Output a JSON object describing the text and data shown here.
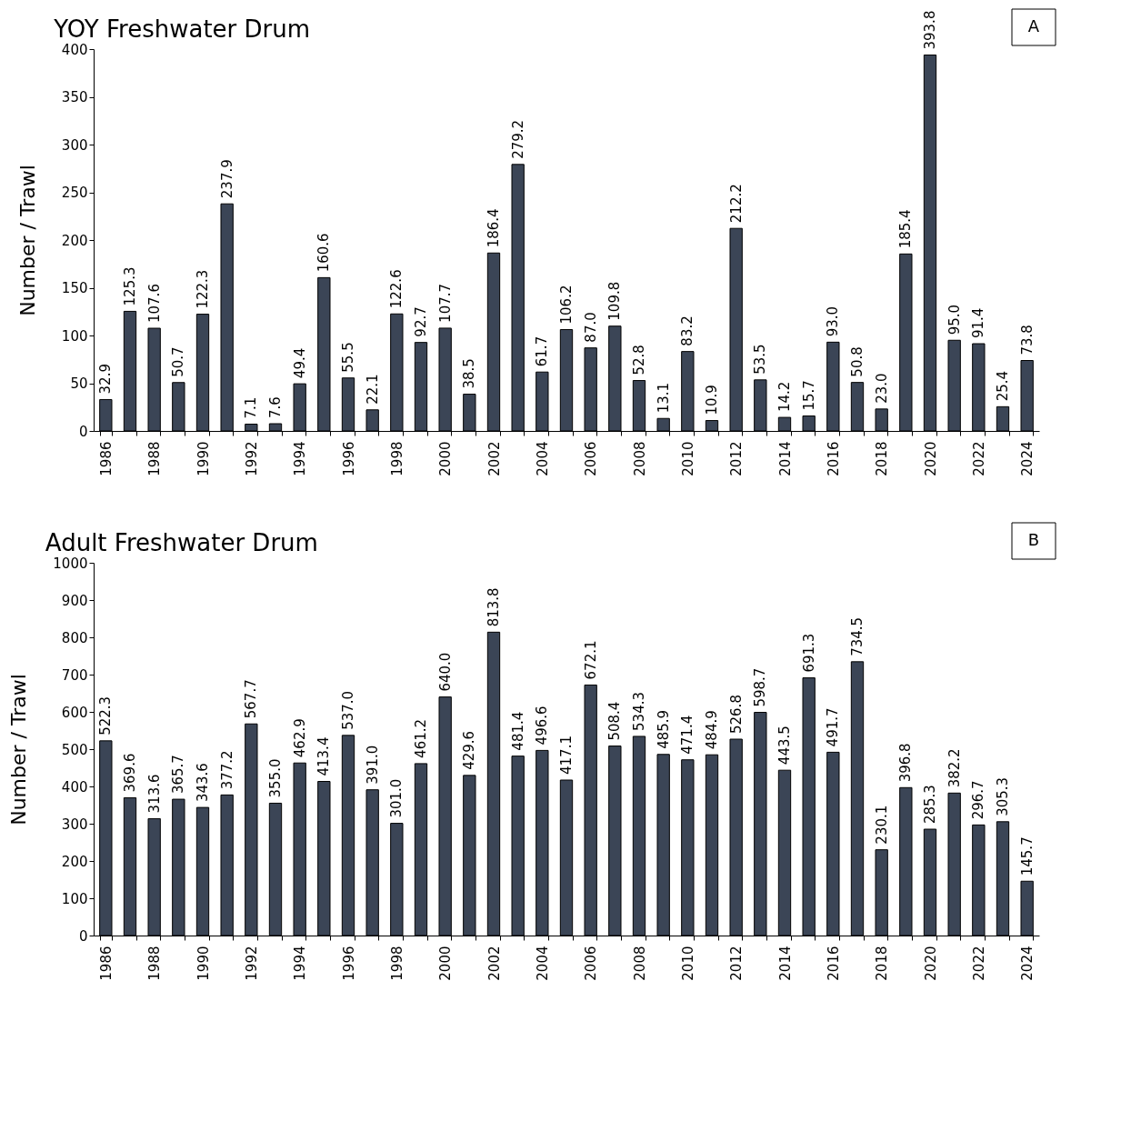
{
  "chart_data": [
    {
      "type": "bar",
      "title": "YOY Freshwater Drum",
      "ylabel": "Number / Trawl",
      "annotations": [
        "A"
      ],
      "categories": [
        "1986",
        null,
        "1988",
        null,
        "1990",
        null,
        "1992",
        null,
        "1994",
        null,
        "1996",
        null,
        "1998",
        null,
        "2000",
        null,
        "2002",
        null,
        "2004",
        null,
        "2006",
        null,
        "2008",
        null,
        "2010",
        null,
        "2012",
        null,
        "2014",
        null,
        "2016",
        null,
        "2018",
        null,
        "2020",
        null,
        "2022",
        null,
        "2024"
      ],
      "values": [
        32.9,
        125.3,
        107.6,
        50.7,
        122.3,
        237.9,
        7.1,
        7.6,
        49.4,
        160.6,
        55.5,
        22.1,
        122.6,
        92.7,
        107.7,
        38.5,
        186.4,
        279.2,
        61.7,
        106.2,
        87.0,
        109.8,
        52.8,
        13.1,
        83.2,
        10.9,
        212.2,
        53.5,
        14.2,
        15.7,
        93.0,
        50.8,
        23.0,
        185.4,
        393.8,
        95.0,
        91.4,
        25.4,
        73.8
      ],
      "value_labels": [
        "32.9",
        "125.3",
        "107.6",
        "50.7",
        "122.3",
        "237.9",
        "7.1",
        "7.6",
        "49.4",
        "160.6",
        "55.5",
        "22.1",
        "122.6",
        "92.7",
        "107.7",
        "38.5",
        "186.4",
        "279.2",
        "61.7",
        "106.2",
        "87.0",
        "109.8",
        "52.8",
        "13.1",
        "83.2",
        "10.9",
        "212.2",
        "53.5",
        "14.2",
        "15.7",
        "93.0",
        "50.8",
        "23.0",
        "185.4",
        "393.8",
        "95.0",
        "91.4",
        "25.4",
        "73.8"
      ],
      "color": "#3b4556",
      "ylim": [
        0,
        400
      ],
      "yticks": [
        0,
        50,
        100,
        150,
        200,
        250,
        300,
        350,
        400
      ],
      "grid": false
    },
    {
      "type": "bar",
      "title": "Adult Freshwater Drum",
      "ylabel": "Number / Trawl",
      "annotations": [
        "B"
      ],
      "categories": [
        "1986",
        null,
        "1988",
        null,
        "1990",
        null,
        "1992",
        null,
        "1994",
        null,
        "1996",
        null,
        "1998",
        null,
        "2000",
        null,
        "2002",
        null,
        "2004",
        null,
        "2006",
        null,
        "2008",
        null,
        "2010",
        null,
        "2012",
        null,
        "2014",
        null,
        "2016",
        null,
        "2018",
        null,
        "2020",
        null,
        "2022",
        null,
        "2024"
      ],
      "values": [
        522.3,
        369.6,
        313.6,
        365.7,
        343.6,
        377.2,
        567.7,
        355.0,
        462.9,
        413.4,
        537.0,
        391.0,
        301.0,
        461.2,
        640.0,
        429.6,
        813.8,
        481.4,
        496.6,
        417.1,
        672.1,
        508.4,
        534.3,
        485.9,
        471.4,
        484.9,
        526.8,
        598.7,
        443.5,
        691.3,
        491.7,
        734.5,
        230.1,
        396.8,
        285.3,
        382.2,
        296.7,
        305.3,
        145.7
      ],
      "value_labels": [
        "522.3",
        "369.6",
        "313.6",
        "365.7",
        "343.6",
        "377.2",
        "567.7",
        "355.0",
        "462.9",
        "413.4",
        "537.0",
        "391.0",
        "301.0",
        "461.2",
        "640.0",
        "429.6",
        "813.8",
        "481.4",
        "496.6",
        "417.1",
        "672.1",
        "508.4",
        "534.3",
        "485.9",
        "471.4",
        "484.9",
        "526.8",
        "598.7",
        "443.5",
        "691.3",
        "491.7",
        "734.5",
        "230.1",
        "396.8",
        "285.3",
        "382.2",
        "296.7",
        "305.3",
        "145.7"
      ],
      "color": "#3b4556",
      "ylim": [
        0,
        1000
      ],
      "yticks": [
        0,
        100,
        200,
        300,
        400,
        500,
        600,
        700,
        800,
        900,
        1000
      ],
      "grid": false
    }
  ]
}
